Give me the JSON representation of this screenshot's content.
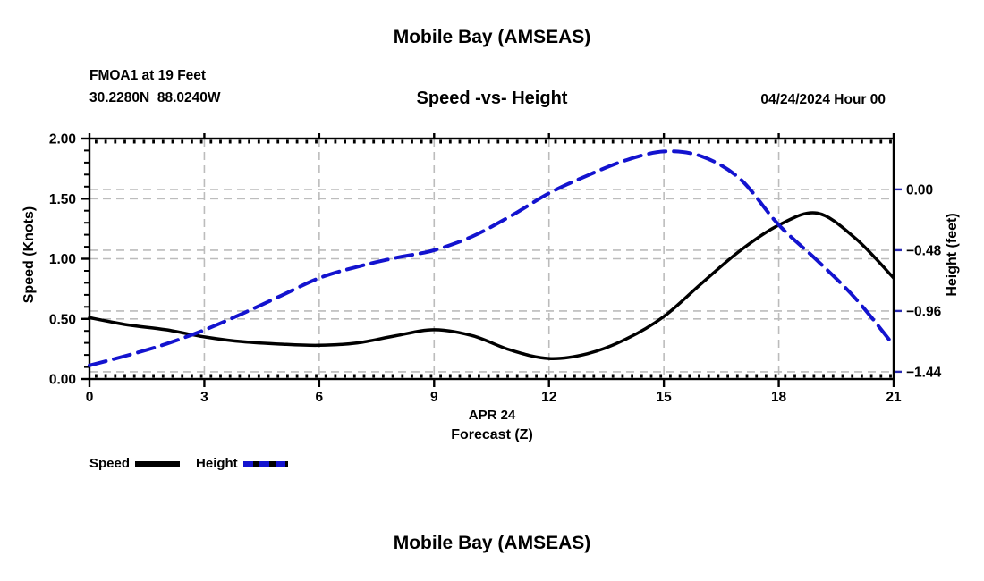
{
  "header": {
    "title": "Mobile Bay (AMSEAS)",
    "station": "FMOA1 at 19 Feet",
    "coordinates": "30.2280N  88.0240W",
    "subtitle": "Speed -vs- Height",
    "datetime": "04/24/2024 Hour 00"
  },
  "footer": {
    "title": "Mobile Bay (AMSEAS)"
  },
  "legend": {
    "items": [
      {
        "label": "Speed",
        "color": "#000000",
        "style": "solid"
      },
      {
        "label": "Height",
        "color": "#1313cf",
        "style": "dashed"
      }
    ]
  },
  "chart_data": {
    "type": "line",
    "title": "Mobile Bay (AMSEAS)",
    "subtitle": "Speed -vs- Height",
    "xlabel_line1": "APR 24",
    "xlabel_line2": "Forecast (Z)",
    "x_range": [
      0,
      21
    ],
    "x_ticks": {
      "values": [
        0,
        3,
        6,
        9,
        12,
        15,
        18,
        21
      ],
      "labels": [
        "0",
        "3",
        "6",
        "9",
        "12",
        "15",
        "18",
        "21"
      ]
    },
    "x_minor_step": 0.25,
    "grid": {
      "color": "#bcbcbc",
      "dash": "9 6",
      "on": true
    },
    "left_axis": {
      "label": "Speed (Knots)",
      "range": [
        0,
        2
      ],
      "tick_values": [
        0,
        0.5,
        1.0,
        1.5,
        2.0
      ],
      "tick_labels": [
        "0.00",
        "0.50",
        "1.00",
        "1.50",
        "2.00"
      ],
      "minor_step": 0.1
    },
    "right_axis": {
      "label": "Height (feet)",
      "range": [
        -1.497,
        0.402
      ],
      "tick_values": [
        0,
        -0.48,
        -0.96,
        -1.44
      ],
      "tick_labels": [
        "0.00",
        "−0.48",
        "−0.96",
        "−1.44"
      ],
      "tick_color": "#2a2ab0"
    },
    "x": [
      0,
      1,
      2,
      3,
      4,
      5,
      6,
      7,
      8,
      9,
      10,
      11,
      12,
      13,
      14,
      15,
      16,
      17,
      18,
      19,
      20,
      21
    ],
    "series": [
      {
        "name": "Speed",
        "axis": "left",
        "color": "#000000",
        "dash": "",
        "width": 3.5,
        "values": [
          0.51,
          0.45,
          0.41,
          0.35,
          0.31,
          0.29,
          0.28,
          0.3,
          0.36,
          0.41,
          0.36,
          0.24,
          0.17,
          0.21,
          0.33,
          0.52,
          0.8,
          1.07,
          1.28,
          1.38,
          1.17,
          0.84
        ]
      },
      {
        "name": "Height",
        "axis": "right",
        "color": "#1313cf",
        "dash": "19 9",
        "width": 4,
        "values": [
          -1.39,
          -1.31,
          -1.22,
          -1.11,
          -0.98,
          -0.84,
          -0.7,
          -0.61,
          -0.54,
          -0.48,
          -0.37,
          -0.21,
          -0.03,
          0.11,
          0.23,
          0.3,
          0.26,
          0.08,
          -0.28,
          -0.56,
          -0.86,
          -1.23
        ]
      }
    ]
  }
}
